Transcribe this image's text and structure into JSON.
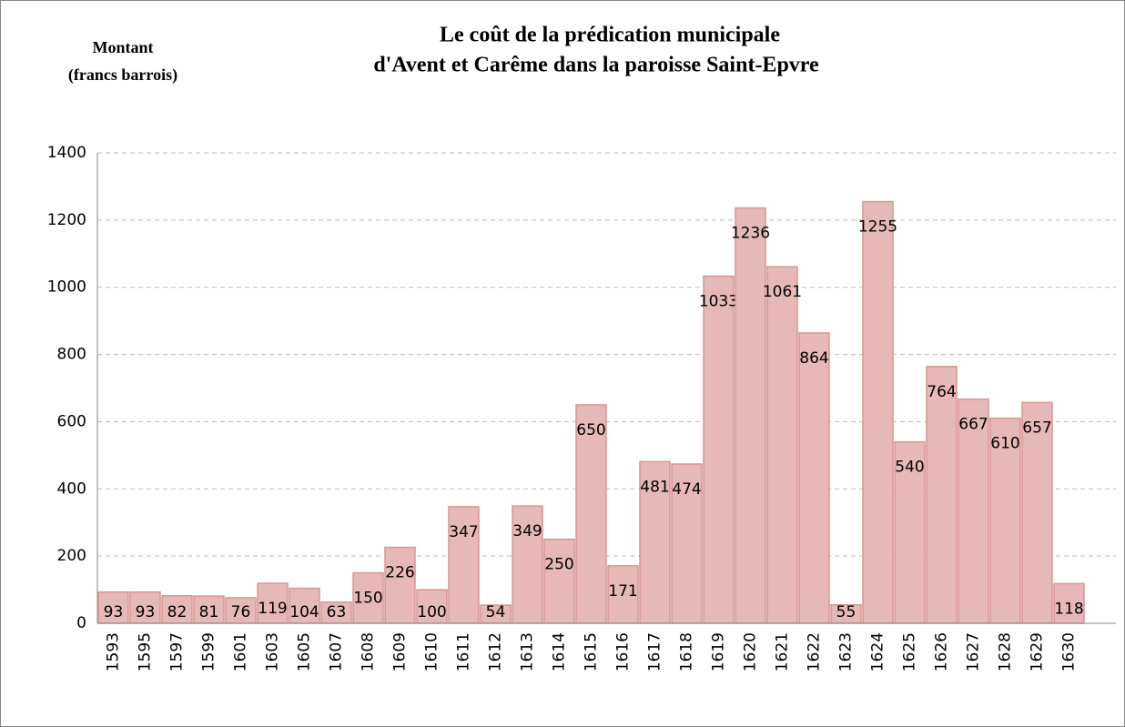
{
  "chart_data": {
    "type": "bar",
    "title": [
      "Le coût de la prédication municipale",
      "d'Avent et Carême dans la paroisse Saint-Epvre"
    ],
    "ylabel": [
      "Montant",
      "(francs barrois)"
    ],
    "categories": [
      "1593",
      "1595",
      "1597",
      "1599",
      "1601",
      "1603",
      "1605",
      "1607",
      "1608",
      "1609",
      "1610",
      "1611",
      "1612",
      "1613",
      "1614",
      "1615",
      "1616",
      "1617",
      "1618",
      "1619",
      "1620",
      "1621",
      "1622",
      "1623",
      "1624",
      "1625",
      "1626",
      "1627",
      "1628",
      "1629",
      "1630"
    ],
    "values": [
      93,
      93,
      82,
      81,
      76,
      119,
      104,
      63,
      150,
      226,
      100,
      347,
      54,
      349,
      250,
      650,
      171,
      481,
      474,
      1033,
      1236,
      1061,
      864,
      55,
      1255,
      540,
      764,
      667,
      610,
      657,
      118
    ],
    "color": "#e6b8b7",
    "ylim": [
      0,
      1400
    ],
    "yticks": [
      0,
      200,
      400,
      600,
      800,
      1000,
      1200,
      1400
    ],
    "grid": true
  }
}
